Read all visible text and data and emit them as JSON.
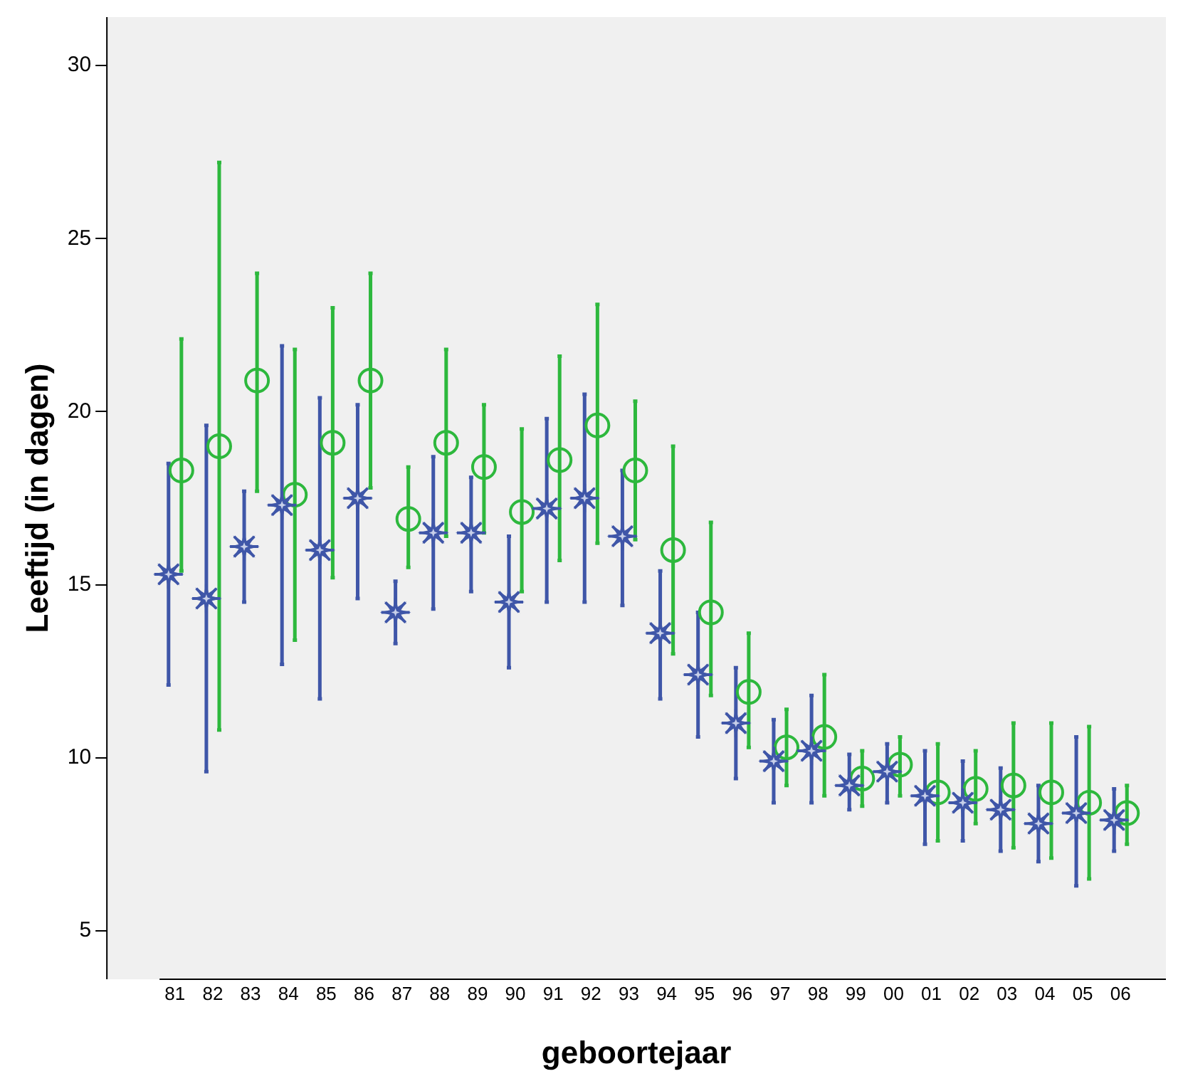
{
  "chart_data": {
    "type": "scatter",
    "xlabel": "geboortejaar",
    "ylabel": "Leeftijd (in dagen)",
    "categories": [
      "81",
      "82",
      "83",
      "84",
      "85",
      "86",
      "87",
      "88",
      "89",
      "90",
      "91",
      "92",
      "93",
      "94",
      "95",
      "96",
      "97",
      "98",
      "99",
      "00",
      "01",
      "02",
      "03",
      "04",
      "05",
      "06"
    ],
    "ylim": [
      3.6,
      31.4
    ],
    "yticks": [
      5,
      10,
      15,
      20,
      25,
      30
    ],
    "grid": false,
    "legend": false,
    "series": [
      {
        "color": "#3f56a8",
        "marker": "star",
        "values": [
          15.3,
          14.6,
          16.1,
          17.3,
          16.0,
          17.5,
          14.2,
          16.5,
          16.5,
          14.5,
          17.2,
          17.5,
          16.4,
          13.6,
          12.4,
          11.0,
          9.9,
          10.2,
          9.2,
          9.6,
          8.9,
          8.7,
          8.5,
          8.1,
          8.4,
          8.2
        ],
        "errors": [
          [
            12.1,
            18.5
          ],
          [
            9.6,
            19.6
          ],
          [
            14.5,
            17.7
          ],
          [
            12.7,
            21.9
          ],
          [
            11.7,
            20.4
          ],
          [
            14.6,
            20.2
          ],
          [
            13.3,
            15.1
          ],
          [
            14.3,
            18.7
          ],
          [
            14.8,
            18.1
          ],
          [
            12.6,
            16.4
          ],
          [
            14.5,
            19.8
          ],
          [
            14.5,
            20.5
          ],
          [
            14.4,
            18.3
          ],
          [
            11.7,
            15.4
          ],
          [
            10.6,
            14.2
          ],
          [
            9.4,
            12.6
          ],
          [
            8.7,
            11.1
          ],
          [
            8.7,
            11.8
          ],
          [
            8.5,
            10.1
          ],
          [
            8.7,
            10.4
          ],
          [
            7.5,
            10.2
          ],
          [
            7.6,
            9.9
          ],
          [
            7.3,
            9.7
          ],
          [
            7.0,
            9.2
          ],
          [
            6.3,
            10.6
          ],
          [
            7.3,
            9.1
          ]
        ]
      },
      {
        "color": "#2db83d",
        "marker": "circle",
        "values": [
          18.3,
          19.0,
          20.9,
          17.6,
          19.1,
          20.9,
          16.9,
          19.1,
          18.4,
          17.1,
          18.6,
          19.6,
          18.3,
          16.0,
          14.2,
          11.9,
          10.3,
          10.6,
          9.4,
          9.8,
          9.0,
          9.1,
          9.2,
          9.0,
          8.7,
          8.4
        ],
        "errors": [
          [
            15.4,
            22.1
          ],
          [
            10.8,
            27.2
          ],
          [
            17.7,
            24.0
          ],
          [
            13.4,
            21.8
          ],
          [
            15.2,
            23.0
          ],
          [
            17.8,
            24.0
          ],
          [
            15.5,
            18.4
          ],
          [
            16.4,
            21.8
          ],
          [
            16.5,
            20.2
          ],
          [
            14.8,
            19.5
          ],
          [
            15.7,
            21.6
          ],
          [
            16.2,
            23.1
          ],
          [
            16.3,
            20.3
          ],
          [
            13.0,
            19.0
          ],
          [
            11.8,
            16.8
          ],
          [
            10.3,
            13.6
          ],
          [
            9.2,
            11.4
          ],
          [
            8.9,
            12.4
          ],
          [
            8.6,
            10.2
          ],
          [
            8.9,
            10.6
          ],
          [
            7.6,
            10.4
          ],
          [
            8.1,
            10.2
          ],
          [
            7.4,
            11.0
          ],
          [
            7.1,
            11.0
          ],
          [
            6.5,
            10.9
          ],
          [
            7.5,
            9.2
          ]
        ]
      }
    ]
  }
}
